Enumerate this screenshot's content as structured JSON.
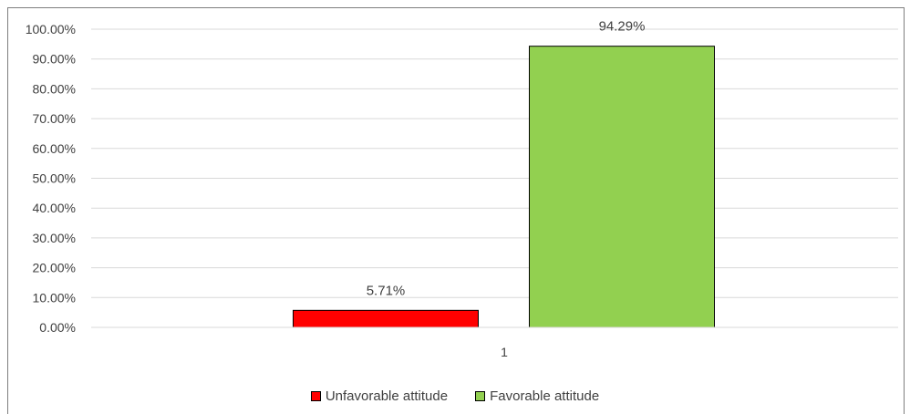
{
  "chart_data": {
    "type": "bar",
    "categories": [
      "1"
    ],
    "series": [
      {
        "name": "Unfavorable attitude",
        "values": [
          5.71
        ],
        "label": "5.71%",
        "color": "#ff0000"
      },
      {
        "name": "Favorable attitude",
        "values": [
          94.29
        ],
        "label": "94.29%",
        "color": "#92d050"
      }
    ],
    "y_ticks": [
      "0.00%",
      "10.00%",
      "20.00%",
      "30.00%",
      "40.00%",
      "50.00%",
      "60.00%",
      "70.00%",
      "80.00%",
      "90.00%",
      "100.00%"
    ],
    "ylim": [
      0,
      100
    ],
    "grid": true,
    "legend_position": "bottom"
  }
}
